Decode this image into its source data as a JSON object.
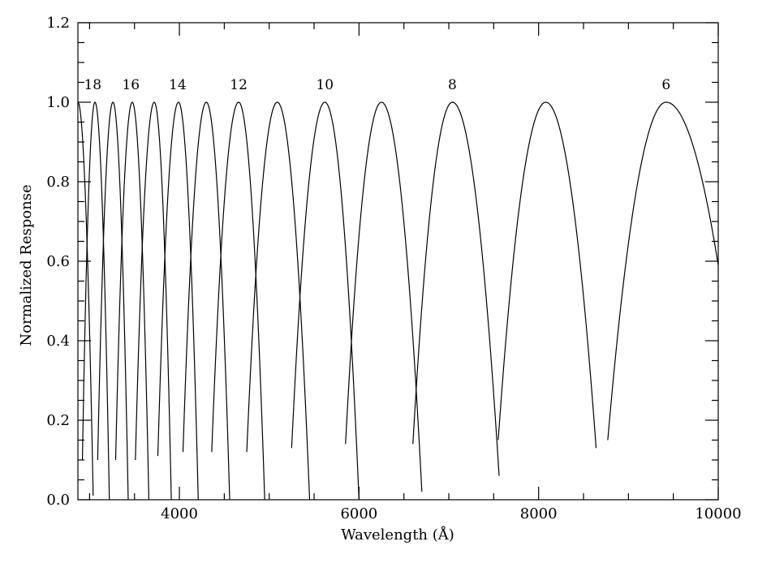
{
  "chart_data": {
    "type": "line",
    "xlabel": "Wavelength (Å)",
    "ylabel": "Normalized Response",
    "xlim": [
      2870,
      10000
    ],
    "ylim": [
      0,
      1.2
    ],
    "x_ticks": [
      4000,
      6000,
      8000,
      10000
    ],
    "x_tick_labels": [
      "4000",
      "6000",
      "8000",
      "10000"
    ],
    "y_ticks": [
      0,
      0.2,
      0.4,
      0.6,
      0.8,
      1.0,
      1.2
    ],
    "y_tick_labels": [
      "0.0",
      "0.2",
      "0.4",
      "0.6",
      "0.8",
      "1.0",
      "1.2"
    ],
    "x_minor_step": 500,
    "y_minor_step": 0.05,
    "grid": false,
    "series": [
      {
        "label": "18",
        "center": 2870,
        "x_start": 2870,
        "x_end": 3040,
        "y_start": 0.95,
        "y_end": 0.01
      },
      {
        "label": "",
        "center": 3060,
        "x_start": 2920,
        "x_end": 3220,
        "y_start": 0.1,
        "y_end": 0.0
      },
      {
        "label": "",
        "center": 3260,
        "x_start": 3090,
        "x_end": 3430,
        "y_start": 0.1,
        "y_end": 0.0
      },
      {
        "label": "16",
        "center": 3475,
        "x_start": 3290,
        "x_end": 3660,
        "y_start": 0.1,
        "y_end": 0.0
      },
      {
        "label": "",
        "center": 3720,
        "x_start": 3510,
        "x_end": 3910,
        "y_start": 0.1,
        "y_end": 0.0
      },
      {
        "label": "14",
        "center": 3990,
        "x_start": 3760,
        "x_end": 4210,
        "y_start": 0.11,
        "y_end": 0.0
      },
      {
        "label": "",
        "center": 4300,
        "x_start": 4040,
        "x_end": 4560,
        "y_start": 0.12,
        "y_end": 0.0
      },
      {
        "label": "12",
        "center": 4660,
        "x_start": 4360,
        "x_end": 4950,
        "y_start": 0.12,
        "y_end": 0.0
      },
      {
        "label": "",
        "center": 5090,
        "x_start": 4750,
        "x_end": 5450,
        "y_start": 0.12,
        "y_end": 0.0
      },
      {
        "label": "10",
        "center": 5620,
        "x_start": 5250,
        "x_end": 6000,
        "y_start": 0.13,
        "y_end": 0.0
      },
      {
        "label": "",
        "center": 6250,
        "x_start": 5850,
        "x_end": 6700,
        "y_start": 0.14,
        "y_end": 0.02
      },
      {
        "label": "8",
        "center": 7040,
        "x_start": 6600,
        "x_end": 7560,
        "y_start": 0.14,
        "y_end": 0.06
      },
      {
        "label": "",
        "center": 8080,
        "x_start": 7550,
        "x_end": 8640,
        "y_start": 0.15,
        "y_end": 0.13
      },
      {
        "label": "6",
        "center": 9420,
        "x_start": 8770,
        "x_end": 10000,
        "y_start": 0.15,
        "y_end": 0.59
      }
    ],
    "order_labels": [
      {
        "text": "18",
        "x": 3035
      },
      {
        "text": "16",
        "x": 3460
      },
      {
        "text": "14",
        "x": 3980
      },
      {
        "text": "12",
        "x": 4660
      },
      {
        "text": "10",
        "x": 5620
      },
      {
        "text": "8",
        "x": 7040
      },
      {
        "text": "6",
        "x": 9420
      }
    ],
    "order_label_y": 1.045
  }
}
